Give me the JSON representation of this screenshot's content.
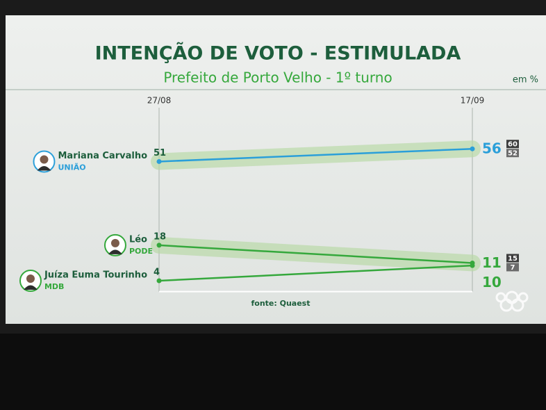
{
  "chart_data": {
    "type": "line",
    "title": "INTENÇÃO DE VOTO - ESTIMULADA",
    "subtitle": "Prefeito de Porto Velho - 1º turno",
    "unit_label": "em %",
    "source": "fonte: Quaest",
    "x": [
      "27/08",
      "17/09"
    ],
    "ylim": [
      0,
      60
    ],
    "series": [
      {
        "name": "Mariana Carvalho",
        "party": "UNIÃO",
        "color": "#2b9fd9",
        "values": [
          51,
          56
        ],
        "range": [
          60,
          52
        ]
      },
      {
        "name": "Léo",
        "party": "PODE",
        "color": "#35a83c",
        "values": [
          18,
          11
        ],
        "range": [
          15,
          7
        ]
      },
      {
        "name": "Juíza Euma Tourinho",
        "party": "MDB",
        "color": "#35a83c",
        "values": [
          4,
          10
        ]
      }
    ]
  }
}
